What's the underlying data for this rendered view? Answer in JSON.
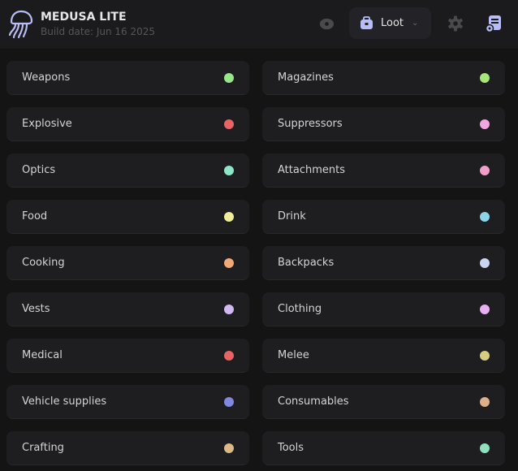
{
  "header": {
    "title": "MEDUSA LITE",
    "build_date": "Build date: Jun 16 2025",
    "mode_label": "Loot",
    "accent": "#b9bdf5"
  },
  "categories": [
    {
      "label": "Weapons",
      "color": "#98e68a"
    },
    {
      "label": "Magazines",
      "color": "#a6e67a"
    },
    {
      "label": "Explosive",
      "color": "#e86464"
    },
    {
      "label": "Suppressors",
      "color": "#f0a6e0"
    },
    {
      "label": "Optics",
      "color": "#8ee6c8"
    },
    {
      "label": "Attachments",
      "color": "#f0a0c8"
    },
    {
      "label": "Food",
      "color": "#f0ec9c"
    },
    {
      "label": "Drink",
      "color": "#8ad6e8"
    },
    {
      "label": "Cooking",
      "color": "#f0a878"
    },
    {
      "label": "Backpacks",
      "color": "#c8d4f0"
    },
    {
      "label": "Vests",
      "color": "#d0b8f0"
    },
    {
      "label": "Clothing",
      "color": "#e8b0f0"
    },
    {
      "label": "Medical",
      "color": "#e86464"
    },
    {
      "label": "Melee",
      "color": "#d8cc80"
    },
    {
      "label": "Vehicle supplies",
      "color": "#8088e0"
    },
    {
      "label": "Consumables",
      "color": "#dcb088"
    },
    {
      "label": "Crafting",
      "color": "#dcb888"
    },
    {
      "label": "Tools",
      "color": "#90e0c0"
    }
  ]
}
